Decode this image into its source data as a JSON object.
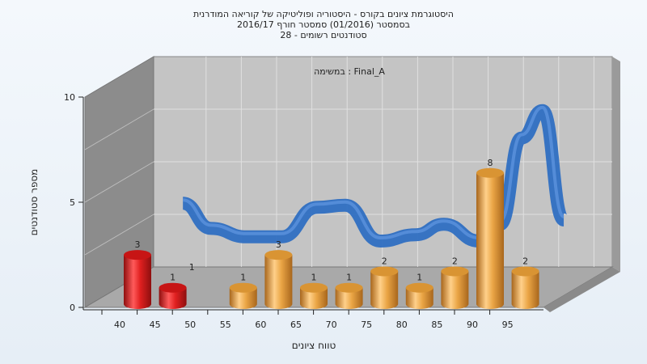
{
  "chart_data": {
    "type": "bar",
    "title_lines": [
      "היסטוגרמת ציונים בקורס - היסטוריה ופוליטיקה של קוריאה המודרנית",
      "בסמסטר  (01/2016)  סמסטר חורף  2016/17",
      "סטודנטים רשומים - 28"
    ],
    "annotation": "במשימה : Final_A",
    "xlabel": "טווח ציונים",
    "ylabel": "מספר סטודנטים",
    "x_ticks": [
      "40",
      "45",
      "50",
      "55",
      "60",
      "65",
      "70",
      "75",
      "80",
      "85",
      "90",
      "95"
    ],
    "y_ticks": [
      "0",
      "5",
      "10"
    ],
    "ylim": [
      0,
      10
    ],
    "bars": [
      {
        "x": 40,
        "value": 3,
        "group": "fail"
      },
      {
        "x": 45,
        "value": 1,
        "group": "fail"
      },
      {
        "x": 55,
        "value": 1,
        "group": "pass"
      },
      {
        "x": 60,
        "value": 3,
        "group": "pass"
      },
      {
        "x": 65,
        "value": 1,
        "group": "pass"
      },
      {
        "x": 70,
        "value": 1,
        "group": "pass"
      },
      {
        "x": 75,
        "value": 2,
        "group": "pass"
      },
      {
        "x": 80,
        "value": 1,
        "group": "pass"
      },
      {
        "x": 85,
        "value": 2,
        "group": "pass"
      },
      {
        "x": 90,
        "value": 8,
        "group": "pass"
      }
    ],
    "bar_labels_extra": [
      {
        "x": 50,
        "label": "1"
      },
      {
        "x": 95,
        "value": 2,
        "group": "pass"
      }
    ],
    "curve": {
      "x": [
        43,
        47,
        52,
        57,
        62,
        66,
        71,
        76,
        80,
        85,
        88,
        91,
        94,
        97
      ],
      "y": [
        3.8,
        2.6,
        2.2,
        2.2,
        3.6,
        3.7,
        2.0,
        2.3,
        2.8,
        2.0,
        2.8,
        6.9,
        8.2,
        3.0
      ]
    },
    "grid": true,
    "colors": {
      "fail": "#d91e1e",
      "pass": "#e8a33d",
      "curve": "#2f6fc2",
      "curve_shadow": "#555555",
      "back_wall": "#c4c4c4",
      "side_wall": "#8c8c8c",
      "floor": "#a9a9a9"
    }
  }
}
